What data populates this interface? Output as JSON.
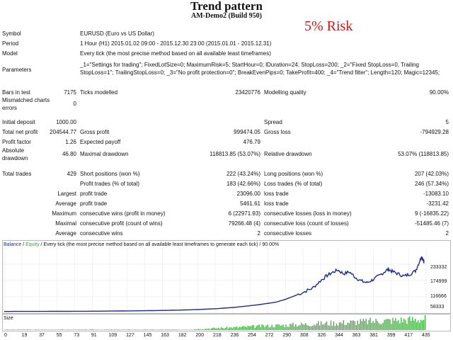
{
  "header": {
    "title": "Trend pattern",
    "subtitle": "AM-Demo2 (Build 950)",
    "risk": "5% Risk"
  },
  "info": {
    "symbol_label": "Symbol",
    "symbol_value": "EURUSD (Euro vs US Dollar)",
    "period_label": "Period",
    "period_value": "1 Hour (H1) 2015.01.02 09:00 - 2015.12.30 23:00 (2015.01.01 - 2015.12.31)",
    "model_label": "Model",
    "model_value": "Every tick (the most precise method based on all available least timeframes)",
    "params_label": "Parameters",
    "params_value": "_1=\"Settings for trading\"; FixedLotSize=0; MaximumRisk=5; StartHour=0; lDuration=24; StopLoss=200; _2=\"Fixed StopLoss=0, Trailing StopLoss=1\"; TrailingStopLoss=0; _3=\"No profit protection=0\"; BreakEvenPips=0; TakeProfit=400; _4=\"Trend filter\"; Length=120; Magic=12345;"
  },
  "stats": {
    "bars_label": "Bars in test",
    "bars": "7175",
    "ticks_label": "Ticks modelled",
    "ticks": "23420776",
    "quality_label": "Modelling quality",
    "quality": "90.00%",
    "mismatch_label": "Mismatched charts errors",
    "mismatch": "0",
    "deposit_label": "Initial deposit",
    "deposit": "1000.00",
    "spread_label": "Spread",
    "spread": "5",
    "netprofit_label": "Total net profit",
    "netprofit": "204544.77",
    "grossprofit_label": "Gross profit",
    "grossprofit": "999474.05",
    "grossloss_label": "Gross loss",
    "grossloss": "-794929.28",
    "pf_label": "Profit factor",
    "pf": "1.26",
    "payoff_label": "Expected payoff",
    "payoff": "476.79",
    "absdd_label": "Absolute drawdown",
    "absdd": "46.80",
    "maxdd_label": "Maximal drawdown",
    "maxdd": "118813.85 (53.07%)",
    "reldd_label": "Relative drawdown",
    "reldd": "53.07% (118813.85)",
    "trades_label": "Total trades",
    "trades": "429",
    "short_label": "Short positions (won %)",
    "short": "222 (43.24%)",
    "long_label": "Long positions (won %)",
    "long": "207 (42.03%)",
    "ptrades_label": "Profit trades (% of total)",
    "ptrades": "183 (42.66%)",
    "ltrades_label": "Loss trades (% of total)",
    "ltrades": "246 (57.34%)",
    "largest": "Largest",
    "average": "Average",
    "maximum": "Maximum",
    "maximal": "Maximal",
    "average2": "Average",
    "lpt_label": "profit trade",
    "lpt": "23096.00",
    "llt_label": "loss trade",
    "llt": "-13083.10",
    "apt_label": "profit trade",
    "apt": "5461.61",
    "alt_label": "loss trade",
    "alt": "-3231.42",
    "mcw_label": "consecutive wins (profit in money)",
    "mcw": "6 (22971.93)",
    "mcl_label": "consecutive losses (loss in money)",
    "mcl": "9 (-16835.22)",
    "mcp_label": "consecutive profit (count of wins)",
    "mcp": "79266.48 (4)",
    "mcls_label": "consecutive loss (count of losses)",
    "mcls": "-51485.46 (7)",
    "acw_label": "consecutive wins",
    "acw": "2",
    "acl_label": "consecutive losses",
    "acl": "2"
  },
  "graph": {
    "legend_balance": "Balance",
    "legend_sep": " / ",
    "legend_equity": "Equity",
    "legend_rest": " / Every tick (the most precise method based on all available least timeframes to generate each tick) / 90.00%",
    "size_label": "Size",
    "colors": {
      "balance": "#1c2a8a",
      "equity": "#2da82d",
      "volume": "#3caa3c",
      "grid": "#e4e4e4"
    },
    "y_ticks": [
      "233332",
      "174999",
      "116666",
      "58333",
      "0"
    ],
    "y_min": 0,
    "y_max": 233332,
    "x_ticks": [
      "0",
      "19",
      "37",
      "55",
      "73",
      "91",
      "109",
      "127",
      "145",
      "163",
      "182",
      "200",
      "218",
      "236",
      "254",
      "272",
      "290",
      "308",
      "326",
      "344",
      "363",
      "381",
      "399",
      "417",
      "435"
    ],
    "x_tick_labels": [
      "0",
      "19",
      "37",
      "55",
      "73",
      "91",
      "109",
      "127",
      "145",
      "163",
      "182",
      "200",
      "218",
      "236",
      "254",
      "272",
      "290",
      "308",
      "326",
      "344",
      "363",
      "381",
      "399",
      "417",
      "435"
    ],
    "balance_points": [
      [
        0,
        1000
      ],
      [
        20,
        1100
      ],
      [
        40,
        1300
      ],
      [
        60,
        1500
      ],
      [
        80,
        1800
      ],
      [
        100,
        2200
      ],
      [
        120,
        3000
      ],
      [
        140,
        3800
      ],
      [
        160,
        5000
      ],
      [
        180,
        6500
      ],
      [
        200,
        9000
      ],
      [
        220,
        13000
      ],
      [
        240,
        19000
      ],
      [
        260,
        28000
      ],
      [
        280,
        40000
      ],
      [
        290,
        52000
      ],
      [
        300,
        68000
      ],
      [
        310,
        85000
      ],
      [
        318,
        100000
      ],
      [
        326,
        130000
      ],
      [
        332,
        150000
      ],
      [
        338,
        165000
      ],
      [
        344,
        176000
      ],
      [
        350,
        160000
      ],
      [
        356,
        168000
      ],
      [
        362,
        145000
      ],
      [
        368,
        130000
      ],
      [
        374,
        122000
      ],
      [
        380,
        135000
      ],
      [
        386,
        150000
      ],
      [
        392,
        168000
      ],
      [
        396,
        180000
      ],
      [
        400,
        170000
      ],
      [
        406,
        160000
      ],
      [
        412,
        150000
      ],
      [
        418,
        158000
      ],
      [
        424,
        172000
      ],
      [
        428,
        210000
      ],
      [
        430,
        233000
      ],
      [
        432,
        222000
      ],
      [
        433,
        205000
      ]
    ]
  }
}
